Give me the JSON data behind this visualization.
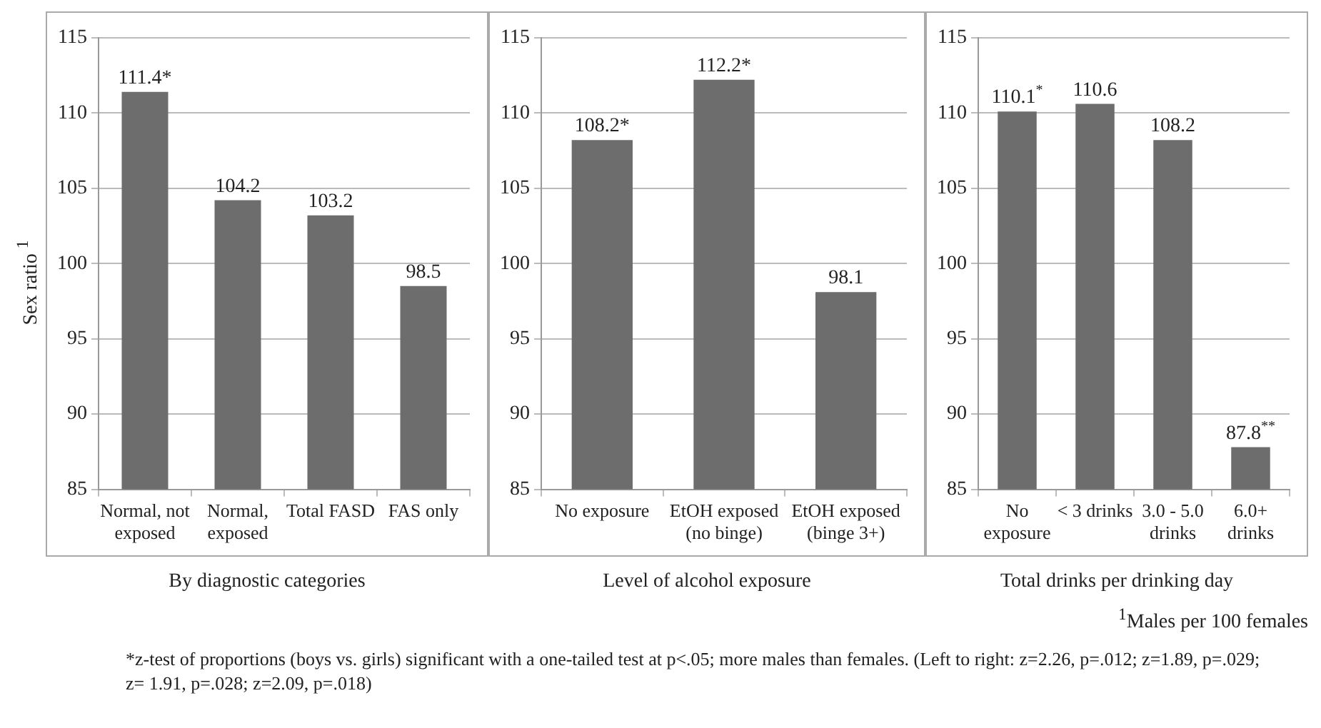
{
  "chart_data": [
    {
      "type": "bar",
      "ylabel": "Sex ratio $^{1}$",
      "xlabel": "By diagnostic categories",
      "categories": [
        "Normal, not exposed",
        "Normal, exposed",
        "Total FASD",
        "FAS only"
      ],
      "values": [
        111.4,
        104.2,
        103.2,
        98.5
      ],
      "value_labels": [
        "111.4*",
        "104.2",
        "103.2",
        "98.5"
      ],
      "color": "#6d6d6d",
      "ylim": [
        85,
        115
      ],
      "yticks": [
        85,
        90,
        95,
        100,
        105,
        110,
        115
      ],
      "grid": "y",
      "annotations": [
        "*z-test of proportions (boys vs. girls) significant with a one-tailed test at p<.05; more males than females. (Left to right: z=2.26, p=.012; z=1.89, p=.029; z= 1.91, p=.028; z=2.09, p=.018)"
      ]
    },
    {
      "type": "bar",
      "xlabel": "Level of alcohol exposure",
      "categories": [
        "No exposure",
        "EtOH exposed (no binge)",
        "EtOH exposed (binge 3+)"
      ],
      "values": [
        108.2,
        112.2,
        98.1
      ],
      "value_labels": [
        "108.2*",
        "112.2*",
        "98.1"
      ],
      "color": "#6d6d6d",
      "ylim": [
        85,
        115
      ],
      "yticks": [
        85,
        90,
        95,
        100,
        105,
        110,
        115
      ],
      "grid": "y"
    },
    {
      "type": "bar",
      "xlabel": "Total drinks per drinking day",
      "categories": [
        "No exposure",
        "< 3 drinks",
        "3.0 - 5.0 drinks",
        "6.0+ drinks"
      ],
      "values": [
        110.1,
        110.6,
        108.2,
        87.8
      ],
      "value_labels": [
        "110.1$^{*}$",
        "110.6",
        "108.2",
        "87.8$^{**}$"
      ],
      "color": "#6d6d6d",
      "ylim": [
        85,
        115
      ],
      "yticks": [
        85,
        90,
        95,
        100,
        105,
        110,
        115
      ],
      "grid": "y",
      "annotations": [
        "$^{1}$Males per 100 females"
      ]
    }
  ]
}
